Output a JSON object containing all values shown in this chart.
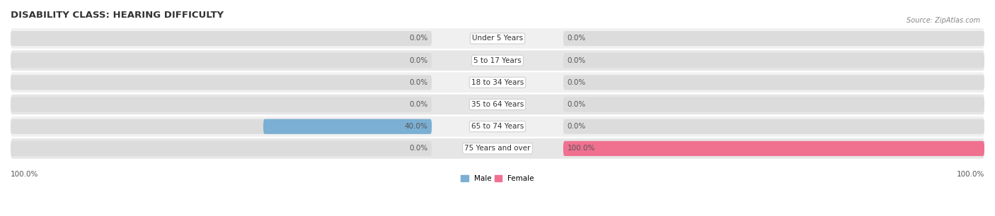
{
  "title": "DISABILITY CLASS: HEARING DIFFICULTY",
  "source": "Source: ZipAtlas.com",
  "categories": [
    "Under 5 Years",
    "5 to 17 Years",
    "18 to 34 Years",
    "35 to 64 Years",
    "65 to 74 Years",
    "75 Years and over"
  ],
  "male_values": [
    0.0,
    0.0,
    0.0,
    0.0,
    40.0,
    0.0
  ],
  "female_values": [
    0.0,
    0.0,
    0.0,
    0.0,
    0.0,
    100.0
  ],
  "male_color": "#7bafd4",
  "female_color": "#f07090",
  "male_label": "Male",
  "female_label": "Female",
  "bar_bg_color": "#dcdcdc",
  "row_bg_colors": [
    "#f0f0f0",
    "#e6e6e6"
  ],
  "max_value": 100.0,
  "title_fontsize": 9.5,
  "source_fontsize": 7,
  "label_fontsize": 7.5,
  "category_fontsize": 7.5,
  "value_fontsize": 7.5,
  "axis_label_left": "100.0%",
  "axis_label_right": "100.0%"
}
